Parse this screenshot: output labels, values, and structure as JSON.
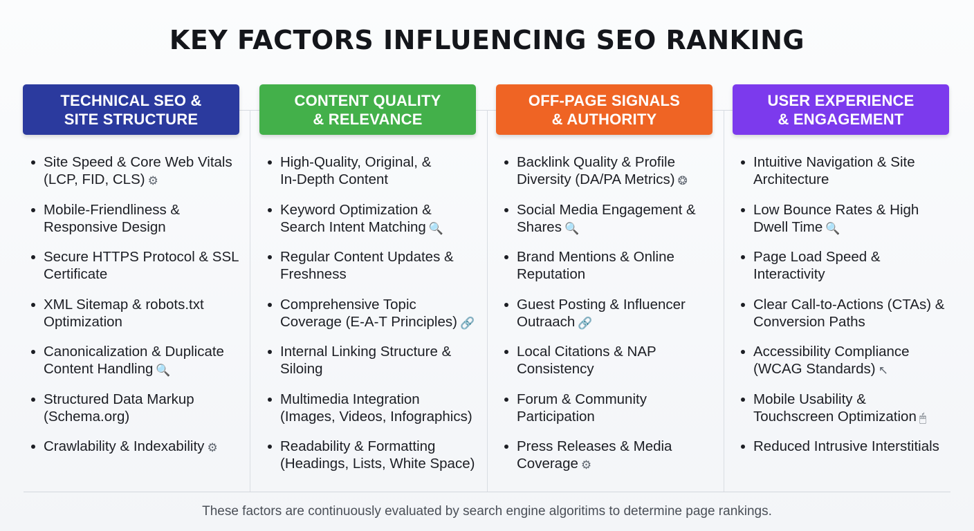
{
  "title": "KEY FACTORS INFLUENCING SEO RANKING",
  "footer": "These factors are continuously evaluated by search engine algoritims to determine page rankings.",
  "colors": {
    "technical": "#2b3a9e",
    "content": "#43b04a",
    "offpage": "#ef6424",
    "ux": "#7c3aed"
  },
  "columns": [
    {
      "header": "TECHNICAL SEO &\nSITE STRUCTURE",
      "items": [
        {
          "text": "Site Speed & Core Web Vitals\n(LCP, FID, CLS)",
          "icon": "gear-icon"
        },
        {
          "text": "Mobile-Friendliness &\nResponsive Design",
          "icon": ""
        },
        {
          "text": "Secure HTTPS Protocol & SSL\nCertificate",
          "icon": ""
        },
        {
          "text": "XML Sitemap & robots.txt\nOptimization",
          "icon": ""
        },
        {
          "text": "Canonicalization & Duplicate\nContent Handling",
          "icon": "magnifier-icon"
        },
        {
          "text": "Structured Data Markup\n(Schema.org)",
          "icon": ""
        },
        {
          "text": "Crawlability & Indexability",
          "icon": "gear-icon"
        }
      ]
    },
    {
      "header": "CONTENT QUALITY\n& RELEVANCE",
      "items": [
        {
          "text": "High-Quality, Original, &\nIn-Depth Content",
          "icon": ""
        },
        {
          "text": "Keyword Optimization &\nSearch Intent Matching",
          "icon": "magnifier-icon"
        },
        {
          "text": "Regular Content Updates &\nFreshness",
          "icon": ""
        },
        {
          "text": "Comprehensive Topic\nCoverage (E-A-T Principles)",
          "icon": "link-icon"
        },
        {
          "text": "Internal Linking Structure &\nSiloing",
          "icon": ""
        },
        {
          "text": "Multimedia Integration\n(Images, Videos, Infographics)",
          "icon": ""
        },
        {
          "text": "Readability & Formatting\n(Headings, Lists, White Space)",
          "icon": ""
        }
      ]
    },
    {
      "header": "OFF-PAGE SIGNALS\n& AUTHORITY",
      "items": [
        {
          "text": "Backlink Quality & Profile\nDiversity (DA/PA Metrics)",
          "icon": "badge-icon"
        },
        {
          "text": "Social Media Engagement &\nShares",
          "icon": "magnifier-icon"
        },
        {
          "text": "Brand Mentions & Online\nReputation",
          "icon": ""
        },
        {
          "text": "Guest Posting & Influencer\nOutraach",
          "icon": "link-icon"
        },
        {
          "text": "Local Citations & NAP\nConsistency",
          "icon": ""
        },
        {
          "text": "Forum & Community\nParticipation",
          "icon": ""
        },
        {
          "text": "Press Releases & Media\nCoverage",
          "icon": "gear-icon"
        }
      ]
    },
    {
      "header": "USER EXPERIENCE\n& ENGAGEMENT",
      "items": [
        {
          "text": "Intuitive Navigation & Site\nArchitecture",
          "icon": ""
        },
        {
          "text": "Low Bounce Rates & High\nDwell Time",
          "icon": "magnifier-icon"
        },
        {
          "text": "Page Load Speed &\nInteractivity",
          "icon": ""
        },
        {
          "text": "Clear Call-to-Actions (CTAs) &\nConversion Paths",
          "icon": ""
        },
        {
          "text": "Accessibility Compliance\n(WCAG Standards)",
          "icon": "cursor-icon"
        },
        {
          "text": "Mobile Usability &\nTouchscreen Optimization",
          "icon": "mouse-icon"
        },
        {
          "text": "Reduced Intrusive Interstitials",
          "icon": ""
        }
      ]
    }
  ]
}
